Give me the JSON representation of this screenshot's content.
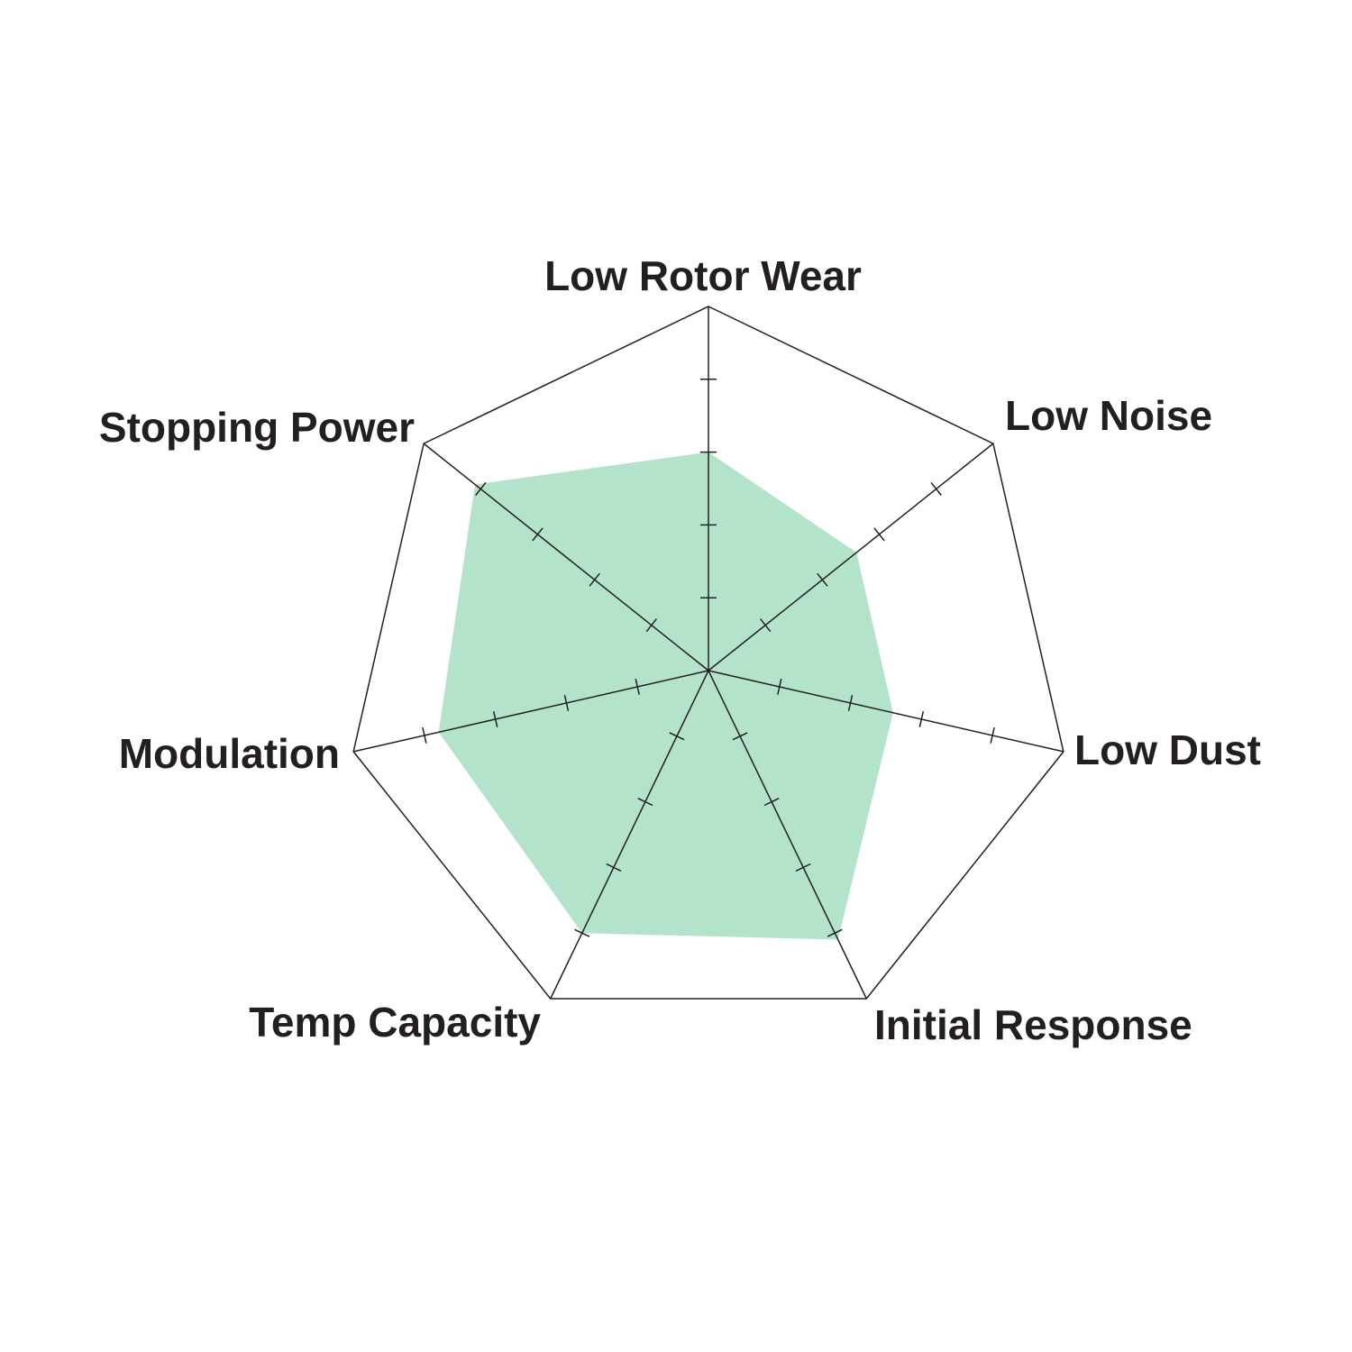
{
  "chart_data": {
    "type": "radar",
    "axes": [
      "Low Rotor Wear",
      "Low Noise",
      "Low Dust",
      "Initial Response",
      "Temp Capacity",
      "Modulation",
      "Stopping Power"
    ],
    "values": [
      3,
      2.6,
      2.6,
      4.1,
      4.0,
      3.8,
      4.1
    ],
    "range": [
      0,
      5
    ],
    "ticks": 5,
    "grid": false,
    "fill_color": "#b3e3cb",
    "line_color": "#231f20"
  }
}
